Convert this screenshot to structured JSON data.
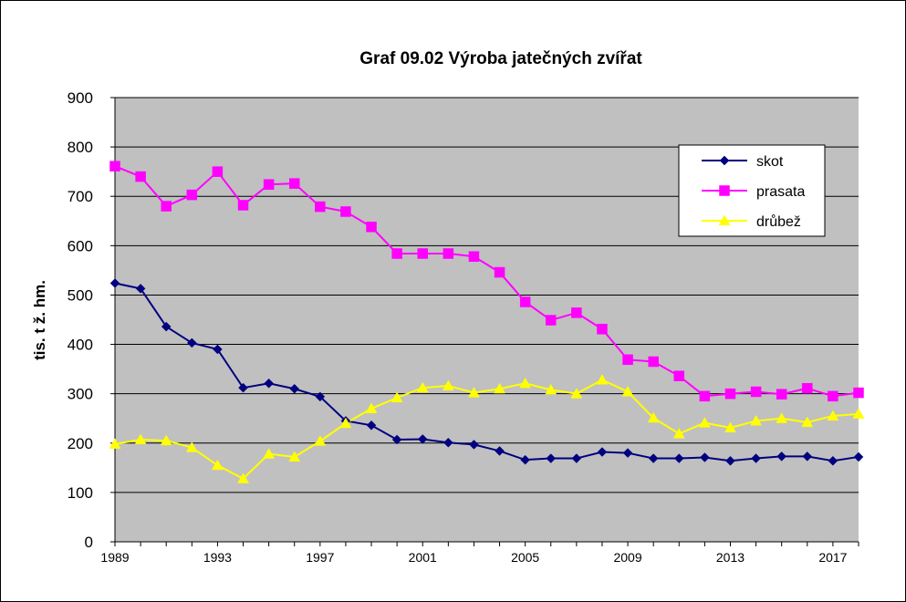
{
  "chart_data": {
    "type": "line",
    "title": "Graf 09.02  Výroba jatečných  zvířat",
    "ylabel": "tis. t ž. hm.",
    "xlabel": "",
    "ylim": [
      0,
      900
    ],
    "yticks": [
      "0",
      "100",
      "200",
      "300",
      "400",
      "500",
      "600",
      "700",
      "800",
      "900"
    ],
    "xtick_labels": [
      "1989",
      "1993",
      "1997",
      "2001",
      "2005",
      "2009",
      "2013",
      "2017"
    ],
    "x": [
      1989,
      1990,
      1991,
      1992,
      1993,
      1994,
      1995,
      1996,
      1997,
      1998,
      1999,
      2000,
      2001,
      2002,
      2003,
      2004,
      2005,
      2006,
      2007,
      2008,
      2009,
      2010,
      2011,
      2012,
      2013,
      2014,
      2015,
      2016,
      2017,
      2018
    ],
    "grid": "horizontal",
    "legend_position": "top-right",
    "plot_background": "#c0c0c0",
    "series": [
      {
        "name": "skot",
        "color": "#000080",
        "marker": "diamond",
        "values": [
          524,
          513,
          436,
          403,
          390,
          312,
          321,
          310,
          294,
          245,
          236,
          207,
          208,
          201,
          197,
          184,
          166,
          169,
          169,
          182,
          180,
          169,
          169,
          171,
          164,
          169,
          173,
          173,
          164,
          172
        ]
      },
      {
        "name": "prasata",
        "color": "#ff00ff",
        "marker": "square",
        "values": [
          761,
          740,
          680,
          703,
          750,
          682,
          724,
          726,
          679,
          669,
          638,
          584,
          584,
          584,
          578,
          546,
          486,
          449,
          464,
          431,
          369,
          365,
          336,
          295,
          300,
          304,
          299,
          311,
          295,
          302
        ]
      },
      {
        "name": "drůbež",
        "color": "#ffff00",
        "marker": "triangle",
        "values": [
          198,
          207,
          205,
          191,
          155,
          128,
          178,
          172,
          204,
          240,
          270,
          292,
          312,
          316,
          302,
          310,
          321,
          308,
          300,
          328,
          304,
          251,
          219,
          241,
          231,
          245,
          250,
          242,
          255,
          259
        ]
      }
    ]
  }
}
